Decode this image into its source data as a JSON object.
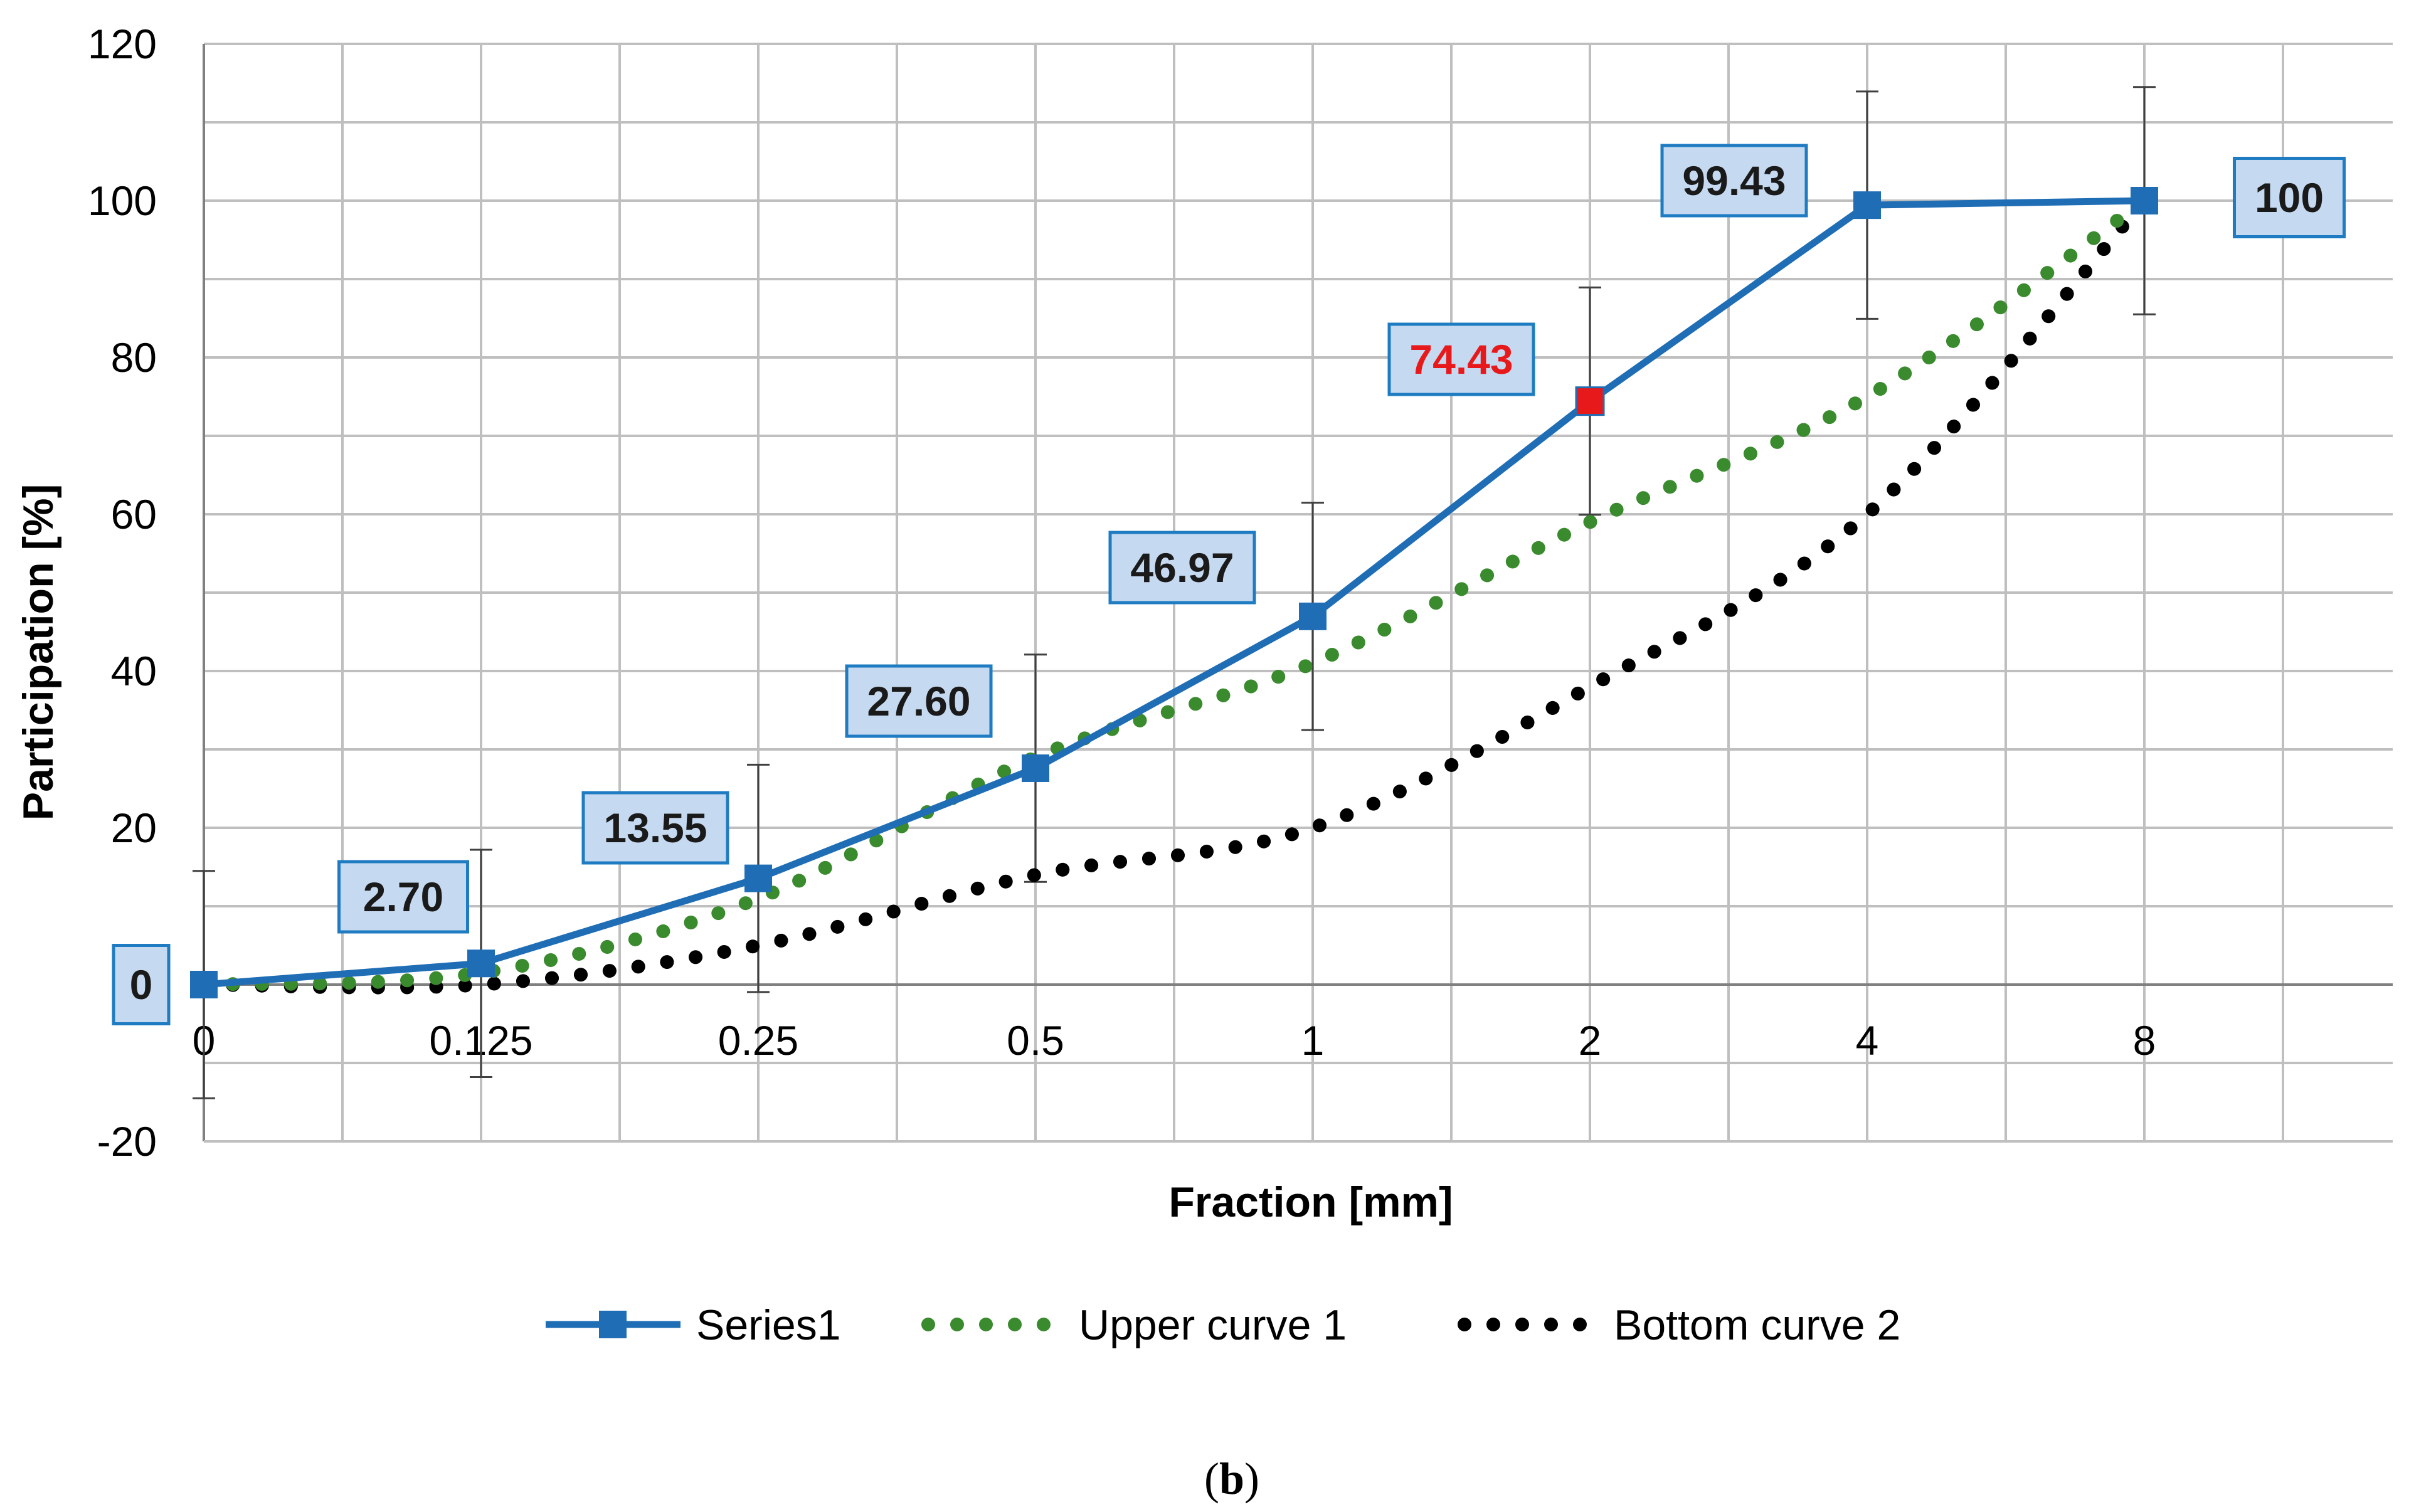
{
  "chart_data": {
    "type": "line",
    "xlabel": "Fraction [mm]",
    "ylabel": "Participation [%]",
    "categories": [
      "0",
      "0.125",
      "0.25",
      "0.5",
      "1",
      "2",
      "4",
      "8"
    ],
    "ylim": [
      -20,
      120
    ],
    "yticks": [
      -20,
      0,
      20,
      40,
      60,
      80,
      100,
      120
    ],
    "grid": true,
    "legend_position": "bottom",
    "series": [
      {
        "name": "Series1",
        "style": "solid-square-markers",
        "color": "#1f6db5",
        "values": [
          0,
          2.7,
          13.55,
          27.6,
          46.97,
          74.43,
          99.43,
          100
        ],
        "data_labels": [
          "0",
          "2.70",
          "13.55",
          "27.60",
          "46.97",
          "74.43",
          "99.43",
          "100"
        ],
        "highlight_index": 5,
        "highlight_color": "#e8191b",
        "error_bar": 14.5
      },
      {
        "name": "Upper curve 1",
        "style": "dotted",
        "color": "#3a8a2e",
        "values": [
          0,
          1.5,
          11,
          29,
          41,
          59,
          75,
          100
        ]
      },
      {
        "name": "Bottom curve 2",
        "style": "dotted",
        "color": "#000000",
        "values": [
          0,
          0,
          5,
          14,
          20,
          38,
          60,
          100
        ]
      }
    ]
  },
  "caption": {
    "open": "(",
    "letter": "b",
    "close": ")"
  }
}
